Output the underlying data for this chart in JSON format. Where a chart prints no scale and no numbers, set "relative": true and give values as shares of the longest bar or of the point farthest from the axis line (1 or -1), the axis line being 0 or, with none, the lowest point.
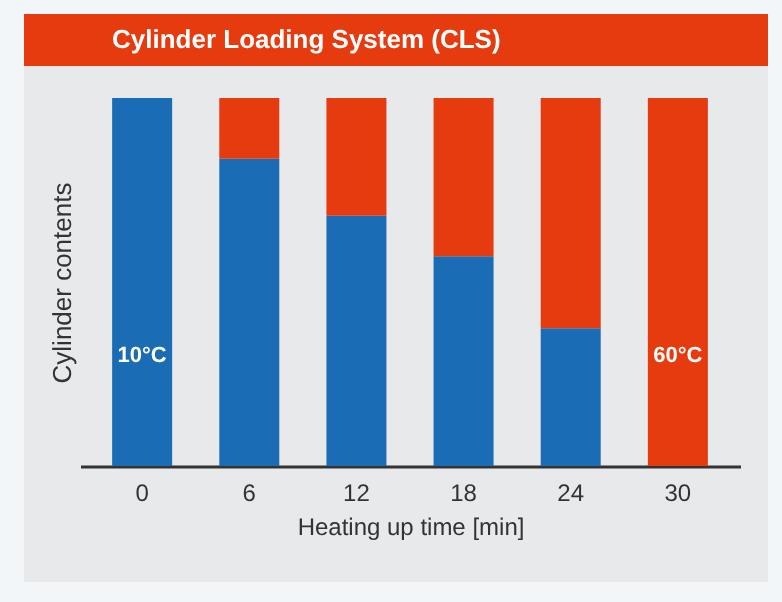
{
  "chart_data": {
    "type": "bar",
    "title": "Cylinder Loading System (CLS)",
    "xlabel": "Heating up time [min]",
    "ylabel": "Cylinder contents",
    "categories": [
      "0",
      "6",
      "12",
      "18",
      "24",
      "30"
    ],
    "relative": true,
    "stacked": true,
    "grid": false,
    "series": [
      {
        "color": "#1a6db5",
        "values": [
          1,
          0.835,
          0.68,
          0.57,
          0.374,
          0
        ]
      },
      {
        "color": "#e63a0f",
        "values": [
          0,
          0.165,
          0.32,
          0.43,
          0.626,
          1
        ]
      }
    ],
    "annotations": [
      "10°C",
      "60°C"
    ]
  }
}
